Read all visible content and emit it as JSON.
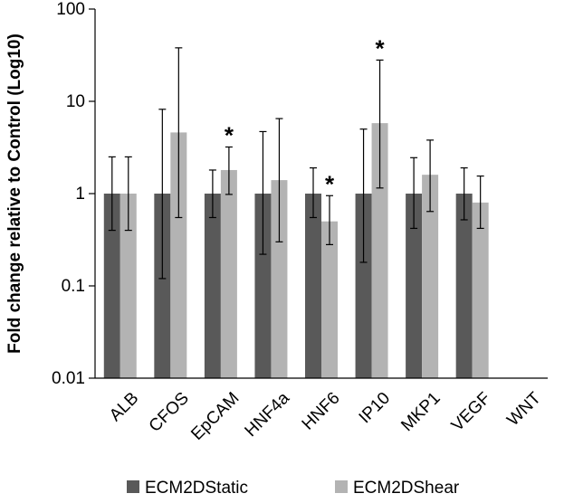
{
  "chart_data": {
    "type": "bar",
    "ylabel": "Fold change relative to  Control (Log10)",
    "yscale": "log",
    "ylim": [
      0.01,
      100
    ],
    "yticks": [
      "0.01",
      "0.1",
      "1",
      "10",
      "100"
    ],
    "categories": [
      "ALB",
      "CFOS",
      "EpCAM",
      "HNF4a",
      "HNF6",
      "IP10",
      "MKP1",
      "VEGF",
      "WNT"
    ],
    "series": [
      {
        "name": "ECM2DStatic",
        "color": "#595959",
        "values": [
          1,
          1,
          1,
          1,
          1,
          1,
          1,
          1,
          null
        ],
        "err_low": [
          0.4,
          0.12,
          0.55,
          0.22,
          0.55,
          0.18,
          0.42,
          0.52,
          null
        ],
        "err_high": [
          2.5,
          8.2,
          1.8,
          4.7,
          1.9,
          5.0,
          2.45,
          1.9,
          null
        ],
        "annotations": [
          "",
          "",
          "",
          "",
          "",
          "",
          "",
          "",
          ""
        ]
      },
      {
        "name": "ECM2DShear",
        "color": "#b3b3b3",
        "values": [
          1,
          4.6,
          1.8,
          1.4,
          0.5,
          5.8,
          1.6,
          0.8,
          null
        ],
        "err_low": [
          0.4,
          0.55,
          0.98,
          0.3,
          0.28,
          1.15,
          0.64,
          0.42,
          null
        ],
        "err_high": [
          2.5,
          38,
          3.2,
          6.5,
          0.95,
          28,
          3.8,
          1.55,
          null
        ],
        "annotations": [
          "",
          "",
          "*",
          "",
          "*",
          "*",
          "",
          "",
          ""
        ]
      }
    ],
    "legend": "bottom",
    "grid": false
  }
}
